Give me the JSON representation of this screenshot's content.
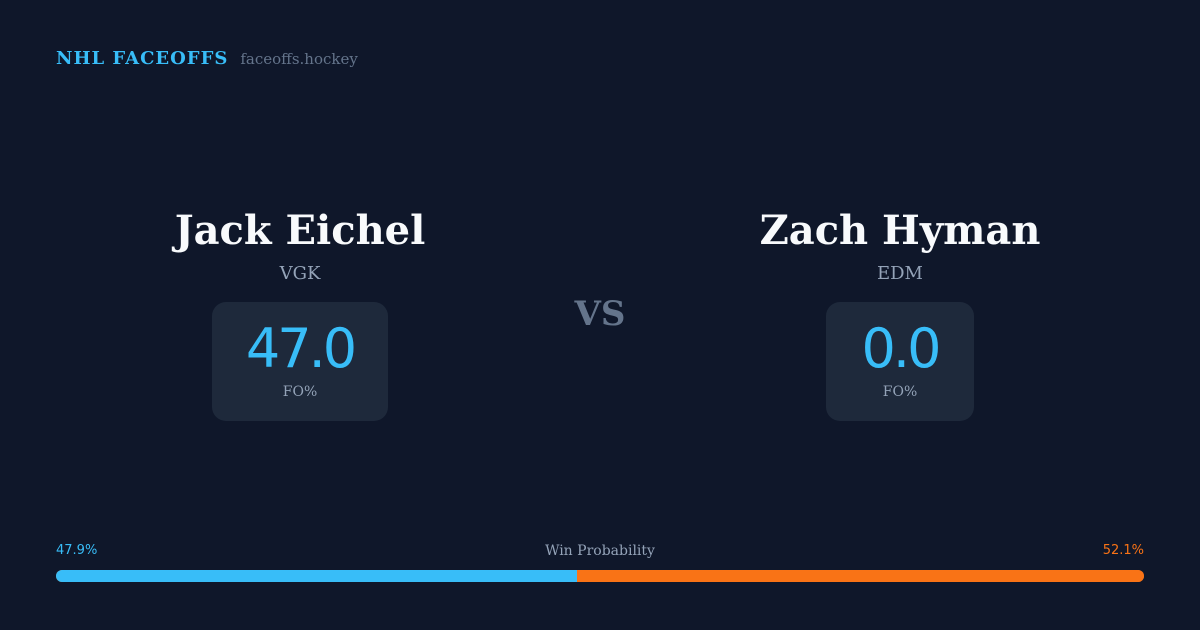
{
  "brand": {
    "name": "NHL FACEOFFS",
    "site": "faceoffs.hockey"
  },
  "players": [
    {
      "name": "Jack Eichel",
      "team": "VGK",
      "fo_value": "47.0",
      "fo_label": "FO%"
    },
    {
      "name": "Zach Hyman",
      "team": "EDM",
      "fo_value": "0.0",
      "fo_label": "FO%"
    }
  ],
  "vs_label": "VS",
  "win_probability": {
    "title": "Win Probability",
    "left_label": "47.9%",
    "right_label": "52.1%",
    "left_percent": 47.9,
    "right_percent": 52.1,
    "colors": {
      "left": "#38bdf8",
      "right": "#f97316"
    }
  }
}
